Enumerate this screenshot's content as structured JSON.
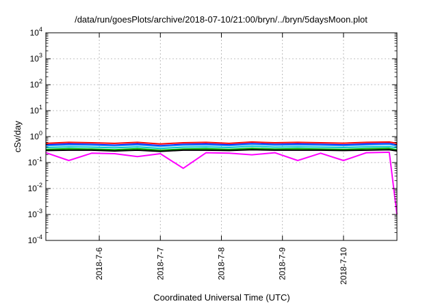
{
  "chart_data": {
    "type": "line",
    "title": "/data/run/goesPlots/archive/2018-07-10/21:00/bryn/../bryn/5daysMoon.plot",
    "xlabel": "Coordinated Universal Time (UTC)",
    "ylabel": "cSv/day",
    "y_scale": "log",
    "ylim": [
      0.0001,
      10000
    ],
    "y_ticks": [
      {
        "base": "10",
        "exp": "-4"
      },
      {
        "base": "10",
        "exp": "-3"
      },
      {
        "base": "10",
        "exp": "-2"
      },
      {
        "base": "10",
        "exp": "-1"
      },
      {
        "base": "10",
        "exp": "0"
      },
      {
        "base": "10",
        "exp": "1"
      },
      {
        "base": "10",
        "exp": "2"
      },
      {
        "base": "10",
        "exp": "3"
      },
      {
        "base": "10",
        "exp": "4"
      }
    ],
    "xlim": [
      "2018-07-05 03:00",
      "2018-07-10 21:00"
    ],
    "x_ticks": [
      "2018-7-6",
      "2018-7-7",
      "2018-7-8",
      "2018-7-9",
      "2018-7-10"
    ],
    "grid": true,
    "x": [
      "2018-07-05 03:00",
      "2018-07-05 12:00",
      "2018-07-05 21:00",
      "2018-07-06 06:00",
      "2018-07-06 15:00",
      "2018-07-07 00:00",
      "2018-07-07 09:00",
      "2018-07-07 18:00",
      "2018-07-08 03:00",
      "2018-07-08 12:00",
      "2018-07-08 21:00",
      "2018-07-09 06:00",
      "2018-07-09 15:00",
      "2018-07-10 00:00",
      "2018-07-10 09:00",
      "2018-07-10 18:00",
      "2018-07-10 21:00"
    ],
    "series": [
      {
        "color": "#ff0000",
        "values": [
          0.55,
          0.6,
          0.58,
          0.55,
          0.6,
          0.52,
          0.58,
          0.6,
          0.55,
          0.62,
          0.58,
          0.6,
          0.58,
          0.56,
          0.6,
          0.62,
          0.55
        ]
      },
      {
        "color": "#0000ff",
        "values": [
          0.48,
          0.52,
          0.5,
          0.47,
          0.52,
          0.45,
          0.5,
          0.52,
          0.48,
          0.54,
          0.5,
          0.52,
          0.5,
          0.48,
          0.52,
          0.54,
          0.47
        ]
      },
      {
        "color": "#1e90ff",
        "values": [
          0.45,
          0.48,
          0.47,
          0.44,
          0.48,
          0.42,
          0.47,
          0.48,
          0.45,
          0.5,
          0.47,
          0.48,
          0.47,
          0.45,
          0.48,
          0.5,
          0.44
        ]
      },
      {
        "color": "#00c8c8",
        "values": [
          0.38,
          0.4,
          0.39,
          0.37,
          0.4,
          0.35,
          0.39,
          0.4,
          0.38,
          0.42,
          0.39,
          0.4,
          0.39,
          0.38,
          0.4,
          0.41,
          0.37
        ]
      },
      {
        "color": "#00b000",
        "values": [
          0.32,
          0.34,
          0.33,
          0.31,
          0.34,
          0.3,
          0.33,
          0.34,
          0.32,
          0.35,
          0.33,
          0.34,
          0.33,
          0.32,
          0.34,
          0.35,
          0.31
        ]
      },
      {
        "color": "#000000",
        "values": [
          0.29,
          0.3,
          0.3,
          0.28,
          0.3,
          0.27,
          0.3,
          0.3,
          0.29,
          0.31,
          0.3,
          0.3,
          0.3,
          0.29,
          0.3,
          0.31,
          0.28
        ]
      },
      {
        "color": "#ff00ff",
        "values": [
          0.24,
          0.12,
          0.23,
          0.22,
          0.17,
          0.22,
          0.06,
          0.24,
          0.23,
          0.2,
          0.24,
          0.12,
          0.23,
          0.12,
          0.24,
          0.25,
          0.001
        ]
      }
    ]
  }
}
